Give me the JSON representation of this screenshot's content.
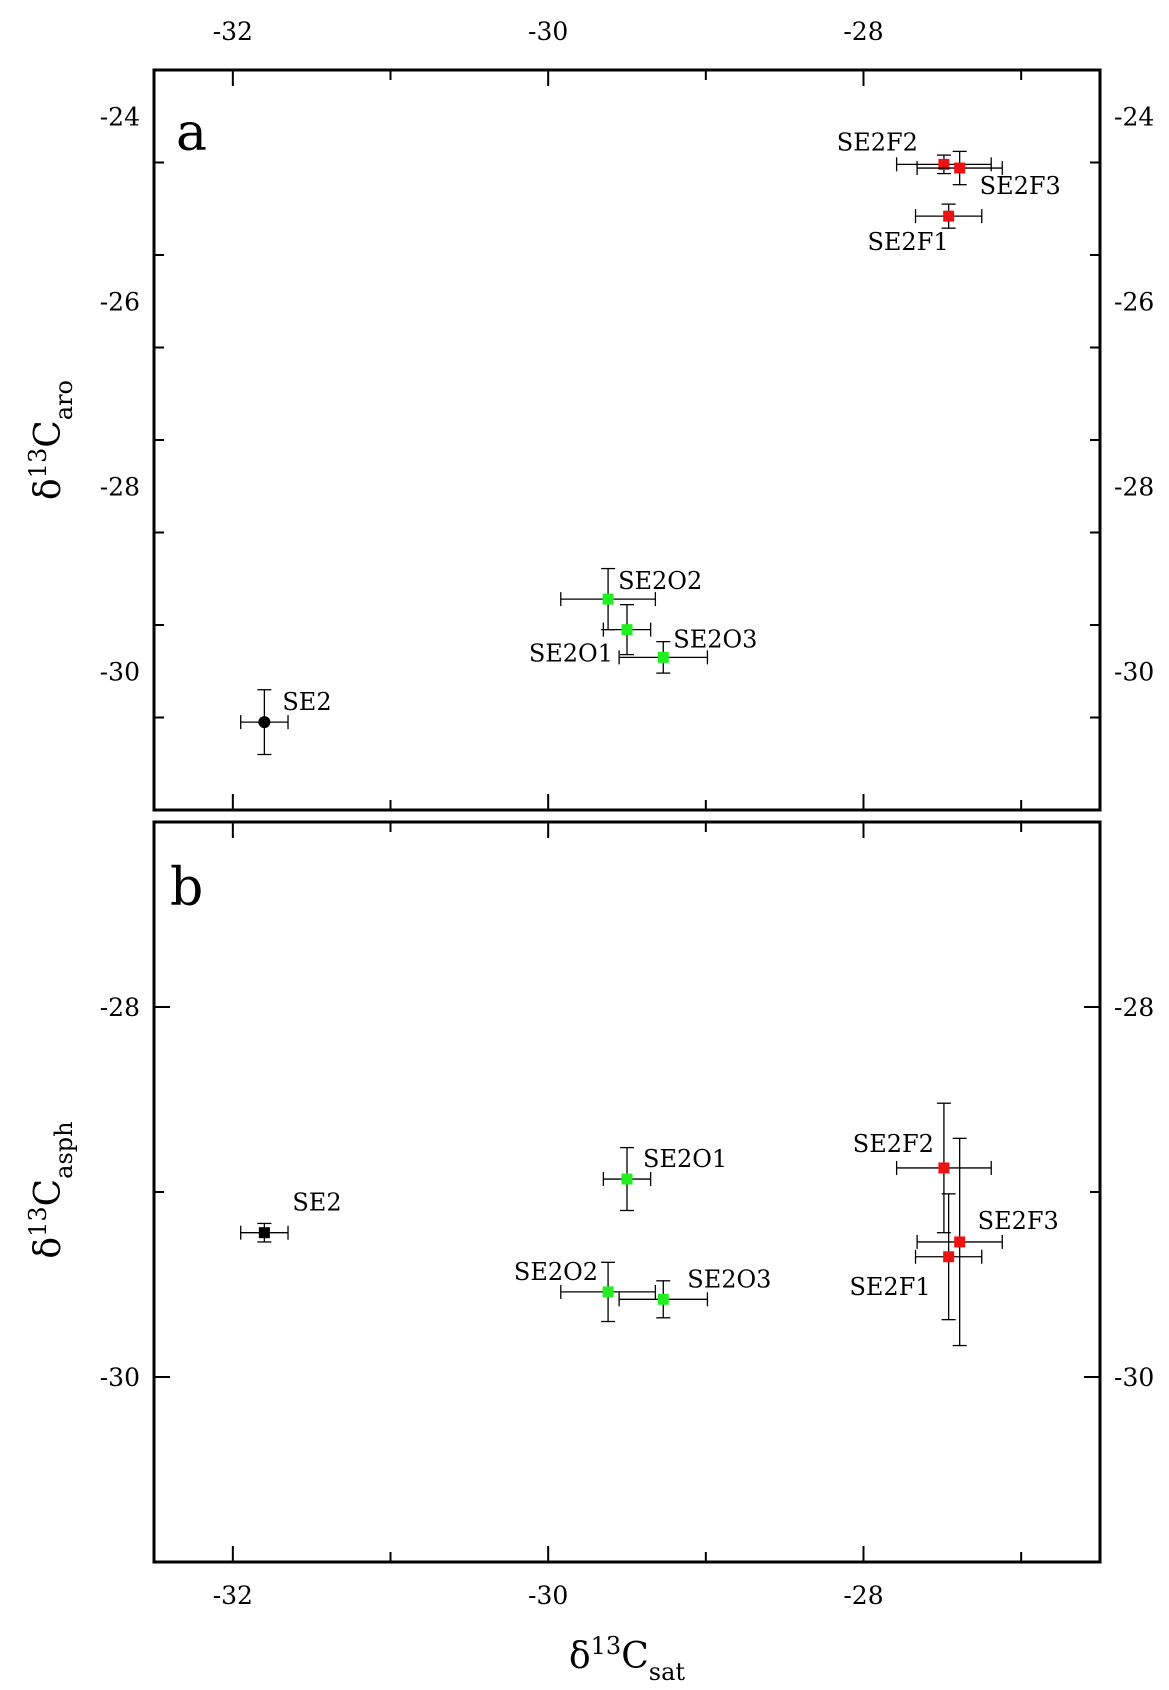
{
  "chart_data": [
    {
      "type": "scatter",
      "panel_label": "a",
      "xlabel": {
        "symbol": "δ",
        "sup": "13",
        "main": "C",
        "sub": "sat"
      },
      "ylabel": {
        "symbol": "δ",
        "sup": "13",
        "main": "C",
        "sub": "aro"
      },
      "xlim": [
        -32.5,
        -26.5
      ],
      "ylim": [
        -31.5,
        -23.5
      ],
      "xticks": [
        -32,
        -30,
        -28
      ],
      "xticks_labels": [
        "-32",
        "-30",
        "-28"
      ],
      "yticks": [
        -24,
        -26,
        -28,
        -30
      ],
      "yticks_labels": [
        "-24",
        "-26",
        "-28",
        "-30"
      ],
      "points": [
        {
          "label": "SE2",
          "x": -31.8,
          "y": -30.55,
          "xerr": 0.15,
          "yerr": 0.35,
          "color": "#000000",
          "marker": "circle"
        },
        {
          "label": "SE2O1",
          "x": -29.5,
          "y": -29.55,
          "xerr": 0.15,
          "yerr": 0.27,
          "color": "#22ee22",
          "marker": "square"
        },
        {
          "label": "SE2O2",
          "x": -29.62,
          "y": -29.22,
          "xerr": 0.3,
          "yerr": 0.33,
          "color": "#22ee22",
          "marker": "square"
        },
        {
          "label": "SE2O3",
          "x": -29.27,
          "y": -29.85,
          "xerr": 0.28,
          "yerr": 0.17,
          "color": "#22ee22",
          "marker": "square"
        },
        {
          "label": "SE2F1",
          "x": -27.46,
          "y": -25.08,
          "xerr": 0.21,
          "yerr": 0.13,
          "color": "#ee1111",
          "marker": "square"
        },
        {
          "label": "SE2F2",
          "x": -27.49,
          "y": -24.52,
          "xerr": 0.3,
          "yerr": 0.1,
          "color": "#ee1111",
          "marker": "square"
        },
        {
          "label": "SE2F3",
          "x": -27.39,
          "y": -24.56,
          "xerr": 0.27,
          "yerr": 0.18,
          "color": "#ee1111",
          "marker": "square"
        }
      ]
    },
    {
      "type": "scatter",
      "panel_label": "b",
      "xlabel": {
        "symbol": "δ",
        "sup": "13",
        "main": "C",
        "sub": "sat"
      },
      "ylabel": {
        "symbol": "δ",
        "sup": "13",
        "main": "C",
        "sub": "asph"
      },
      "xlim": [
        -32.5,
        -26.5
      ],
      "ylim": [
        -31.0,
        -27.0
      ],
      "xticks": [
        -32,
        -30,
        -28
      ],
      "xticks_labels": [
        "-32",
        "-30",
        "-28"
      ],
      "yticks": [
        -28,
        -30
      ],
      "yticks_labels": [
        "-28",
        "-30"
      ],
      "points": [
        {
          "label": "SE2",
          "x": -31.8,
          "y": -29.22,
          "xerr": 0.15,
          "yerr": 0.05,
          "color": "#000000",
          "marker": "square"
        },
        {
          "label": "SE2O1",
          "x": -29.5,
          "y": -28.93,
          "xerr": 0.15,
          "yerr": 0.17,
          "color": "#22ee22",
          "marker": "square"
        },
        {
          "label": "SE2O2",
          "x": -29.62,
          "y": -29.54,
          "xerr": 0.3,
          "yerr": 0.16,
          "color": "#22ee22",
          "marker": "square"
        },
        {
          "label": "SE2O3",
          "x": -29.27,
          "y": -29.58,
          "xerr": 0.28,
          "yerr": 0.1,
          "color": "#22ee22",
          "marker": "square"
        },
        {
          "label": "SE2F1",
          "x": -27.46,
          "y": -29.35,
          "xerr": 0.21,
          "yerr": 0.34,
          "color": "#ee1111",
          "marker": "square"
        },
        {
          "label": "SE2F2",
          "x": -27.49,
          "y": -28.87,
          "xerr": 0.3,
          "yerr": 0.35,
          "color": "#ee1111",
          "marker": "square"
        },
        {
          "label": "SE2F3",
          "x": -27.39,
          "y": -29.27,
          "xerr": 0.27,
          "yerr": 0.56,
          "color": "#ee1111",
          "marker": "square"
        }
      ]
    }
  ]
}
